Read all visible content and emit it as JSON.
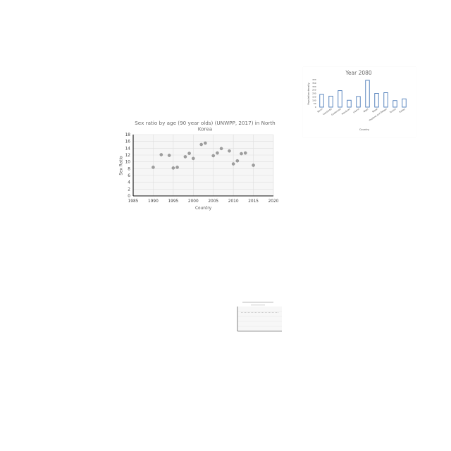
{
  "chart_data": [
    {
      "type": "scatter",
      "title_lines": [
        "Sex ratio by age (90 year olds) (UNWPP, 2017) in North",
        "Korea"
      ],
      "xlabel": "Country",
      "ylabel": "Sex Ratio",
      "xlim": [
        1985,
        2020
      ],
      "ylim": [
        0,
        18
      ],
      "x_ticks": [
        "1985",
        "1990",
        "1995",
        "2000",
        "2005",
        "2010",
        "2015",
        "2020"
      ],
      "y_ticks": [
        "0",
        "2",
        "4",
        "6",
        "8",
        "10",
        "12",
        "14",
        "16",
        "18"
      ],
      "grid": true,
      "point_color": "#9e9e9e",
      "points": [
        {
          "x": 1990,
          "y": 8.4
        },
        {
          "x": 1992,
          "y": 12.1
        },
        {
          "x": 1994,
          "y": 11.9
        },
        {
          "x": 1995,
          "y": 8.2
        },
        {
          "x": 1996,
          "y": 8.4
        },
        {
          "x": 1998,
          "y": 11.5
        },
        {
          "x": 1999,
          "y": 12.5
        },
        {
          "x": 2000,
          "y": 11.0
        },
        {
          "x": 2002,
          "y": 15.1
        },
        {
          "x": 2003,
          "y": 15.5
        },
        {
          "x": 2005,
          "y": 11.8
        },
        {
          "x": 2006,
          "y": 12.6
        },
        {
          "x": 2007,
          "y": 13.9
        },
        {
          "x": 2009,
          "y": 13.2
        },
        {
          "x": 2010,
          "y": 9.4
        },
        {
          "x": 2011,
          "y": 10.3
        },
        {
          "x": 2012,
          "y": 12.4
        },
        {
          "x": 2013,
          "y": 12.6
        },
        {
          "x": 2015,
          "y": 9.0
        }
      ]
    },
    {
      "type": "bar",
      "title": "Year 2080",
      "xlabel": "Country",
      "ylabel": "Population density",
      "ylim": [
        0,
        400
      ],
      "y_ticks": [
        "0",
        "50",
        "100",
        "150",
        "200",
        "250",
        "300",
        "350",
        "400"
      ],
      "categories": [
        "Benin",
        "Cambodia",
        "Guatemala",
        "Honduras",
        "Liberia",
        "Niger",
        "Nepal",
        "Thailand and Tobago",
        "Tunisia",
        "Turkey"
      ],
      "values": [
        185,
        160,
        240,
        100,
        155,
        390,
        200,
        210,
        95,
        120
      ],
      "bar_color": "#4a7ab8"
    },
    {
      "type": "line",
      "title": "",
      "line_color": "#8a8a8a",
      "y_value_fraction": 0.75
    }
  ]
}
